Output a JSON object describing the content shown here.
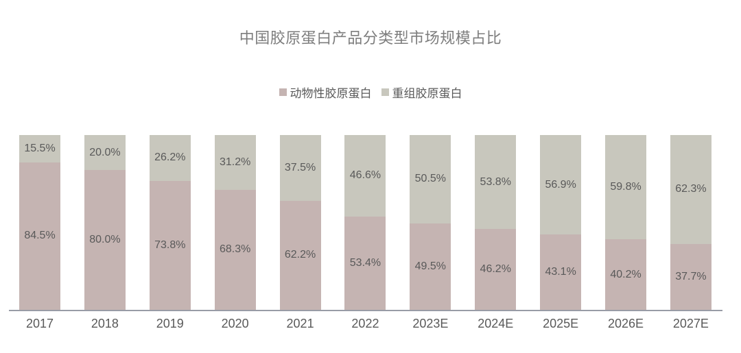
{
  "chart_data": {
    "type": "bar",
    "stacked": true,
    "title": "中国胶原蛋白产品分类型市场规模占比",
    "categories": [
      "2017",
      "2018",
      "2019",
      "2020",
      "2021",
      "2022",
      "2023E",
      "2024E",
      "2025E",
      "2026E",
      "2027E"
    ],
    "series": [
      {
        "name": "动物性胶原蛋白",
        "color": "#c5b4b2",
        "values": [
          84.5,
          80.0,
          73.8,
          68.3,
          62.2,
          53.4,
          49.5,
          46.2,
          43.1,
          40.2,
          37.7
        ]
      },
      {
        "name": "重组胶原蛋白",
        "color": "#c8c7bd",
        "values": [
          15.5,
          20.0,
          26.2,
          31.2,
          37.5,
          46.6,
          50.5,
          53.8,
          56.9,
          59.8,
          62.3
        ]
      }
    ],
    "value_suffix": "%",
    "value_decimals": 1,
    "ylim": [
      0,
      100
    ],
    "legend_position": "top",
    "grid": false,
    "xlabel": "",
    "ylabel": "",
    "colors": {
      "title_text": "#7d7d7d",
      "data_label_text": "#595959",
      "axis_label_text": "#595959",
      "legend_text": "#595959",
      "axis_line": "#989ca6",
      "background": "#ffffff"
    }
  }
}
